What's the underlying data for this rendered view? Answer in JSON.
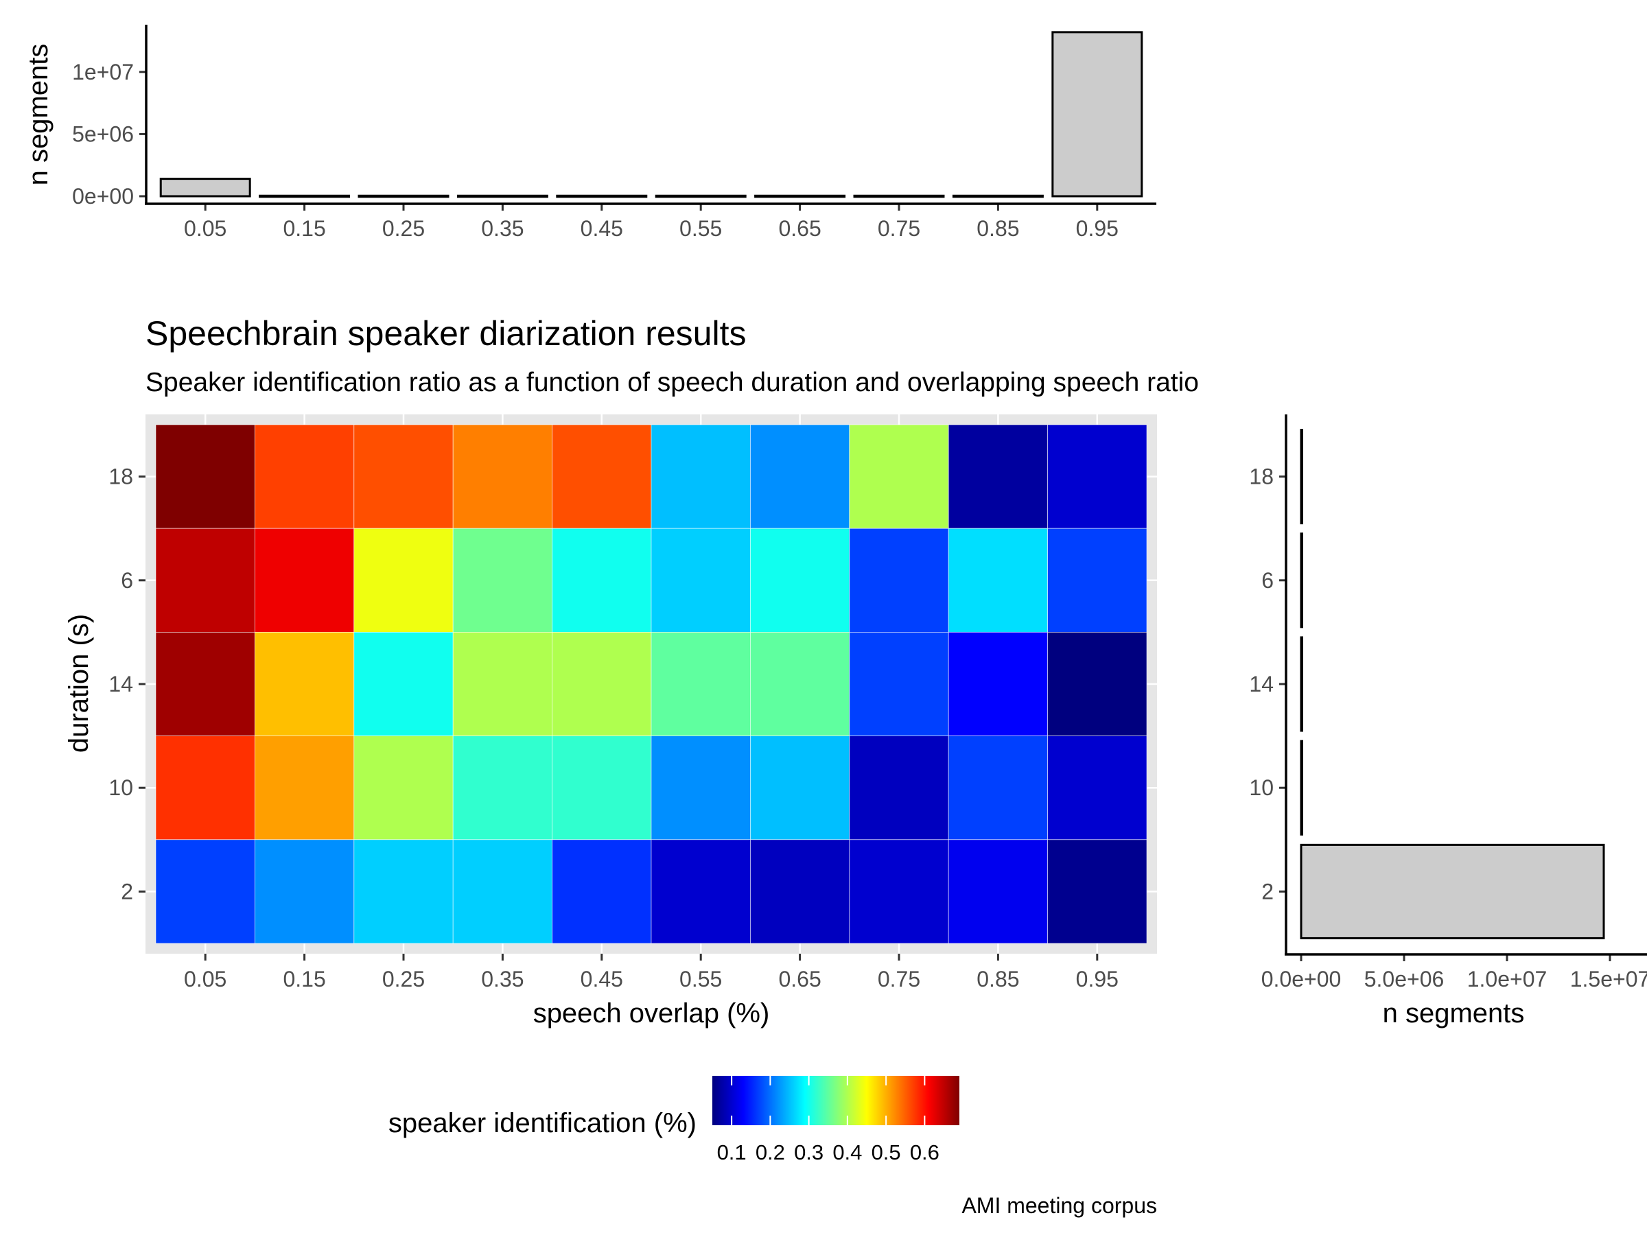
{
  "chart_data": [
    {
      "type": "bar",
      "role": "top-marginal-histogram",
      "categories": [
        "0.05",
        "0.15",
        "0.25",
        "0.35",
        "0.45",
        "0.55",
        "0.65",
        "0.75",
        "0.85",
        "0.95"
      ],
      "values": [
        1400000,
        40000,
        40000,
        40000,
        40000,
        40000,
        40000,
        40000,
        40000,
        13200000
      ],
      "ylabel": "n segments",
      "ylim": [
        0,
        13800000
      ],
      "yticks": [
        0,
        5000000,
        10000000
      ],
      "ytick_labels": [
        "0e+00",
        "5e+06",
        "1e+07"
      ],
      "grid": false,
      "bar_fill": "#cccccc",
      "bar_stroke": "#000000"
    },
    {
      "type": "heatmap",
      "role": "main",
      "title": "Speechbrain speaker diarization results",
      "subtitle": "Speaker identification ratio as a function of speech duration and overlapping speech ratio",
      "xlabel": "speech overlap (%)",
      "ylabel": "duration (s)",
      "x": [
        "0.05",
        "0.15",
        "0.25",
        "0.35",
        "0.45",
        "0.55",
        "0.65",
        "0.75",
        "0.85",
        "0.95"
      ],
      "y": [
        "18",
        "6",
        "14",
        "10",
        "2"
      ],
      "values": [
        [
          0.69,
          0.57,
          0.56,
          0.53,
          0.56,
          0.25,
          0.22,
          0.4,
          0.07,
          0.1
        ],
        [
          0.65,
          0.62,
          0.44,
          0.36,
          0.3,
          0.26,
          0.3,
          0.17,
          0.27,
          0.17
        ],
        [
          0.67,
          0.49,
          0.3,
          0.4,
          0.4,
          0.35,
          0.35,
          0.17,
          0.13,
          0.05
        ],
        [
          0.58,
          0.51,
          0.4,
          0.32,
          0.32,
          0.22,
          0.25,
          0.09,
          0.17,
          0.1
        ],
        [
          0.17,
          0.22,
          0.26,
          0.26,
          0.16,
          0.1,
          0.09,
          0.1,
          0.12,
          0.06
        ]
      ],
      "panel_background": "#e6e6e6",
      "grid": true,
      "legend": {
        "title": "speaker identification (%)",
        "placement": "bottom",
        "breaks": [
          0.1,
          0.2,
          0.3,
          0.4,
          0.5,
          0.6
        ],
        "break_labels": [
          "0.1",
          "0.2",
          "0.3",
          "0.4",
          "0.5",
          "0.6"
        ],
        "limits": [
          0.05,
          0.69
        ],
        "palette": [
          "#00007f",
          "#0000ff",
          "#007fff",
          "#00ffff",
          "#7fff7f",
          "#ffff00",
          "#ff7f00",
          "#ff0000",
          "#7f0000"
        ]
      },
      "caption": "AMI meeting corpus"
    },
    {
      "type": "bar",
      "role": "right-marginal-histogram",
      "orientation": "horizontal",
      "categories": [
        "18",
        "6",
        "14",
        "10",
        "2"
      ],
      "values": [
        15000,
        15000,
        15000,
        20000,
        14700000
      ],
      "xlabel": "n segments",
      "xlim": [
        0,
        15000000
      ],
      "xticks": [
        0,
        5000000,
        10000000,
        15000000
      ],
      "xtick_labels": [
        "0.0e+00",
        "5.0e+06",
        "1.0e+07",
        "1.5e+07"
      ],
      "grid": false,
      "bar_fill": "#cccccc",
      "bar_stroke": "#000000"
    }
  ]
}
